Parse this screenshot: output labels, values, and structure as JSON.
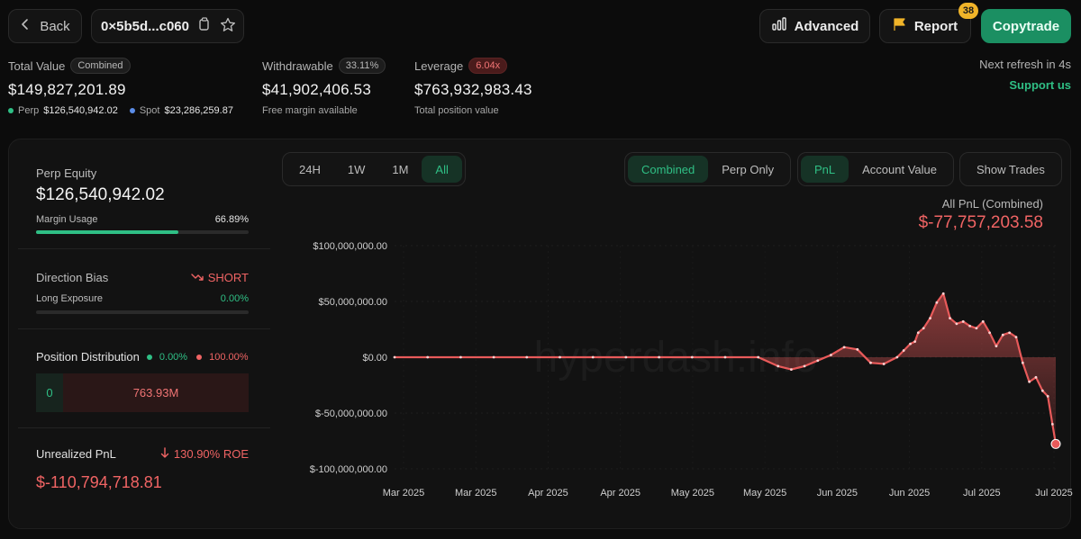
{
  "header": {
    "back_label": "Back",
    "address": "0×5b5d...c060",
    "advanced_label": "Advanced",
    "report_label": "Report",
    "report_badge": "38",
    "copytrade_label": "Copytrade"
  },
  "stats": {
    "total_value": {
      "label": "Total Value",
      "pill": "Combined",
      "value": "$149,827,201.89",
      "perp_label": "Perp",
      "perp_value": "$126,540,942.02",
      "spot_label": "Spot",
      "spot_value": "$23,286,259.87"
    },
    "withdrawable": {
      "label": "Withdrawable",
      "pill": "33.11%",
      "value": "$41,902,406.53",
      "sub": "Free margin available"
    },
    "leverage": {
      "label": "Leverage",
      "pill": "6.04x",
      "value": "$763,932,983.43",
      "sub": "Total position value"
    },
    "refresh": "Next refresh in 4s",
    "support": "Support us"
  },
  "sidebar": {
    "perp_equity_label": "Perp Equity",
    "perp_equity_value": "$126,540,942.02",
    "margin_usage_label": "Margin Usage",
    "margin_usage_value": "66.89%",
    "margin_usage_fraction": 0.6689,
    "direction_bias_label": "Direction Bias",
    "direction_bias_value": "SHORT",
    "long_exposure_label": "Long Exposure",
    "long_exposure_value": "0.00%",
    "long_exposure_fraction": 0,
    "position_distribution_label": "Position Distribution",
    "long_pct": "0.00%",
    "short_pct": "100.00%",
    "long_amount": "0",
    "short_amount": "763.93M",
    "unrealized_pnl_label": "Unrealized PnL",
    "roe_value": "130.90% ROE",
    "unrealized_pnl_value": "$-110,794,718.81"
  },
  "controls": {
    "timeframes": [
      "24H",
      "1W",
      "1M",
      "All"
    ],
    "timeframe_selected": "All",
    "scope": [
      "Combined",
      "Perp Only"
    ],
    "scope_selected": "Combined",
    "metric": [
      "PnL",
      "Account Value"
    ],
    "metric_selected": "PnL",
    "show_trades_label": "Show Trades"
  },
  "chart_header": {
    "label": "All PnL (Combined)",
    "value": "$-77,757,203.58"
  },
  "colors": {
    "accent_green": "#2fbf85",
    "negative_red": "#f06464",
    "line_red": "#e85a5a"
  },
  "chart_data": {
    "type": "area",
    "watermark": "hyperdash.info",
    "ylim": [
      -100000000,
      100000000
    ],
    "y_ticks": [
      100000000,
      50000000,
      0,
      -50000000,
      -100000000
    ],
    "y_tick_labels": [
      "$100,000,000.00",
      "$50,000,000.00",
      "$0.00",
      "$-50,000,000.00",
      "$-100,000,000.00"
    ],
    "x_tick_labels": [
      "Mar 2025",
      "Mar 2025",
      "Apr 2025",
      "Apr 2025",
      "May 2025",
      "May 2025",
      "Jun 2025",
      "Jun 2025",
      "Jul 2025",
      "Jul 2025"
    ],
    "grid": true,
    "series": [
      {
        "x": [
          0,
          5,
          10,
          15,
          20,
          25,
          30,
          35,
          40,
          45,
          50,
          55,
          58,
          60,
          62,
          64,
          66,
          68,
          70,
          72,
          74,
          76,
          77,
          78,
          78.7,
          79.2,
          80,
          81,
          82,
          83,
          84,
          85,
          86,
          87,
          88,
          89,
          90,
          91,
          92,
          93,
          94,
          95,
          96,
          97,
          98,
          98.8,
          99.5,
          100
        ],
        "values": [
          0,
          0,
          0,
          0,
          0,
          0,
          0,
          0,
          0,
          0,
          0,
          0,
          -8000000,
          -11000000,
          -8000000,
          -3000000,
          2000000,
          9000000,
          7000000,
          -5000000,
          -6000000,
          0,
          6000000,
          12000000,
          14000000,
          22000000,
          26000000,
          35000000,
          49000000,
          57000000,
          35000000,
          30000000,
          32000000,
          28000000,
          26000000,
          32000000,
          22000000,
          10000000,
          20000000,
          22000000,
          18000000,
          -5000000,
          -22000000,
          -18000000,
          -30000000,
          -35000000,
          -60000000,
          -77757203
        ]
      }
    ]
  }
}
